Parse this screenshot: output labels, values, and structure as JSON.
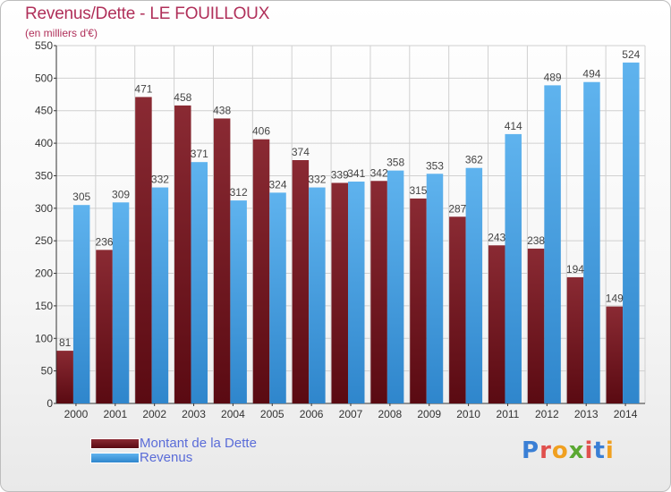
{
  "colors": {
    "title": "#b0305a",
    "dette": "#6e1520",
    "revenus": "#4fa3e0",
    "grid": "#d0d0d0",
    "legend_text": "#5a6cd8"
  },
  "logo": {
    "letters": [
      "P",
      "r",
      "o",
      "x",
      "i",
      "t",
      "i"
    ],
    "colors": [
      "#3a7fd5",
      "#e0504d",
      "#f0a020",
      "#5aa832",
      "#e0504d",
      "#3a7fd5",
      "#f0a020"
    ],
    "name": "Proxiti"
  },
  "chart_data": {
    "type": "bar",
    "title": "Revenus/Dette - LE FOUILLOUX",
    "subtitle": "(en milliers d'€)",
    "xlabel": "",
    "ylabel": "",
    "ylim": [
      0,
      550
    ],
    "yticks": [
      0,
      50,
      100,
      150,
      200,
      250,
      300,
      350,
      400,
      450,
      500,
      550
    ],
    "grid": true,
    "legend_position": "bottom-left",
    "categories": [
      "2000",
      "2001",
      "2002",
      "2003",
      "2004",
      "2005",
      "2006",
      "2007",
      "2008",
      "2009",
      "2010",
      "2011",
      "2012",
      "2013",
      "2014"
    ],
    "series": [
      {
        "name": "Montant de la Dette",
        "values": [
          81,
          236,
          471,
          458,
          438,
          406,
          374,
          339,
          342,
          315,
          287,
          243,
          238,
          194,
          149
        ]
      },
      {
        "name": "Revenus",
        "values": [
          305,
          309,
          332,
          371,
          312,
          324,
          332,
          341,
          358,
          353,
          362,
          414,
          489,
          494,
          524
        ]
      }
    ]
  }
}
